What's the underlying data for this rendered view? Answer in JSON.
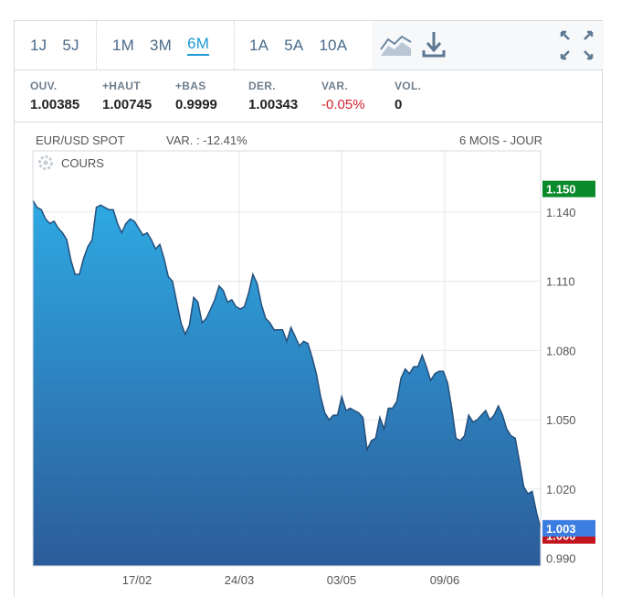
{
  "periods": [
    {
      "label": "1J",
      "active": false
    },
    {
      "label": "5J",
      "active": false
    },
    {
      "label": "1M",
      "active": false
    },
    {
      "label": "3M",
      "active": false
    },
    {
      "label": "6M",
      "active": true
    },
    {
      "label": "1A",
      "active": false
    },
    {
      "label": "5A",
      "active": false
    },
    {
      "label": "10A",
      "active": false
    }
  ],
  "icons": {
    "chart_type": "area-chart-icon",
    "download": "download-icon",
    "fullscreen": "fullscreen-icon",
    "settings": "gear-icon"
  },
  "stats": [
    {
      "label": "OUV.",
      "value": "1.00385",
      "negative": false
    },
    {
      "label": "+HAUT",
      "value": "1.00745",
      "negative": false
    },
    {
      "label": "+BAS",
      "value": "0.9999",
      "negative": false
    },
    {
      "label": "DER.",
      "value": "1.00343",
      "negative": false
    },
    {
      "label": "VAR.",
      "value": "-0.05%",
      "negative": true
    },
    {
      "label": "VOL.",
      "value": "0",
      "negative": false
    }
  ],
  "colors": {
    "accent": "#1f9ad6",
    "area_top": "#2ea9e3",
    "area_bottom": "#2c5c9a",
    "line": "#234f7c",
    "badge_high": "#0a8a2a",
    "badge_last": "#3b7de0",
    "badge_low": "#c0141e",
    "negative": "#d1202f"
  },
  "chart_data": {
    "type": "area",
    "instrument": "EUR/USD SPOT",
    "variation": "VAR. : -12.41%",
    "range_label": "6 MOIS - JOUR",
    "series_label": "COURS",
    "x_ticks": [
      "17/02",
      "24/03",
      "03/05",
      "09/06"
    ],
    "y_ticks": [
      1.14,
      1.11,
      1.08,
      1.05,
      1.02,
      0.99
    ],
    "y_tick_labels": [
      "1.140",
      "1.110",
      "1.080",
      "1.050",
      "1.020",
      "0.990"
    ],
    "ylim": [
      0.9867,
      1.1665
    ],
    "badges": [
      {
        "label": "1.150",
        "value": 1.15,
        "kind": "high"
      },
      {
        "label": "1.003",
        "value": 1.003,
        "kind": "last"
      },
      {
        "label": "1.000",
        "value": 0.9999,
        "kind": "low"
      }
    ],
    "grid": true,
    "values": [
      1.145,
      1.142,
      1.141,
      1.137,
      1.135,
      1.136,
      1.133,
      1.131,
      1.128,
      1.119,
      1.113,
      1.113,
      1.12,
      1.125,
      1.128,
      1.142,
      1.143,
      1.142,
      1.141,
      1.141,
      1.135,
      1.131,
      1.135,
      1.137,
      1.136,
      1.133,
      1.13,
      1.131,
      1.128,
      1.124,
      1.126,
      1.12,
      1.112,
      1.11,
      1.101,
      1.092,
      1.087,
      1.091,
      1.103,
      1.101,
      1.092,
      1.094,
      1.098,
      1.102,
      1.108,
      1.106,
      1.101,
      1.102,
      1.099,
      1.098,
      1.099,
      1.105,
      1.113,
      1.109,
      1.1,
      1.094,
      1.092,
      1.089,
      1.089,
      1.089,
      1.084,
      1.09,
      1.086,
      1.082,
      1.084,
      1.083,
      1.077,
      1.07,
      1.06,
      1.053,
      1.05,
      1.052,
      1.052,
      1.06,
      1.054,
      1.055,
      1.054,
      1.053,
      1.051,
      1.037,
      1.041,
      1.042,
      1.051,
      1.046,
      1.055,
      1.055,
      1.058,
      1.068,
      1.072,
      1.07,
      1.073,
      1.073,
      1.078,
      1.073,
      1.067,
      1.07,
      1.071,
      1.071,
      1.066,
      1.055,
      1.042,
      1.041,
      1.043,
      1.052,
      1.049,
      1.05,
      1.052,
      1.054,
      1.05,
      1.052,
      1.056,
      1.052,
      1.046,
      1.043,
      1.042,
      1.032,
      1.021,
      1.018,
      1.019,
      1.01,
      1.003
    ]
  }
}
